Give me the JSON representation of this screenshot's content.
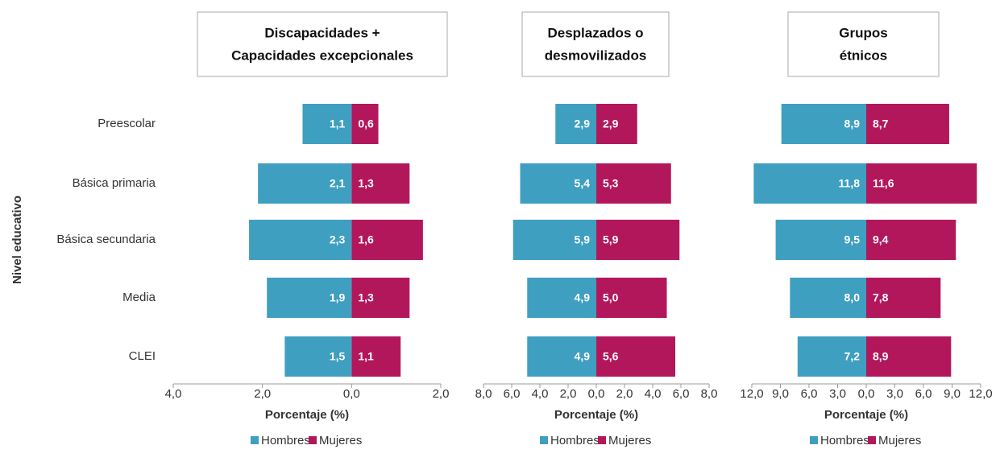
{
  "chart_data": [
    {
      "type": "bar",
      "orientation": "horizontal",
      "title": [
        "Discapacidades +",
        "Capacidades excepcionales"
      ],
      "ylabel": "Nivel educativo",
      "categories": [
        "Preescolar",
        "Básica primaria",
        "Básica secundaria",
        "Media",
        "CLEI"
      ],
      "xlabel": "Porcentaje (%)",
      "xlim": [
        -4,
        2
      ],
      "xticks": [
        {
          "value": -4,
          "label": "4,0"
        },
        {
          "value": -2,
          "label": "2,0"
        },
        {
          "value": 0,
          "label": "0,0"
        },
        {
          "value": 2,
          "label": "2,0"
        }
      ],
      "series": [
        {
          "name": "Hombres",
          "color": "#3f9fc1",
          "values": [
            -1.1,
            -2.1,
            -2.3,
            -1.9,
            -1.5
          ],
          "value_labels": [
            "1,1",
            "2,1",
            "2,3",
            "1,9",
            "1,5"
          ]
        },
        {
          "name": "Mujeres",
          "color": "#b3175b",
          "values": [
            0.6,
            1.3,
            1.6,
            1.3,
            1.1
          ],
          "value_labels": [
            "0,6",
            "1,3",
            "1,6",
            "1,3",
            "1,1"
          ]
        }
      ]
    },
    {
      "type": "bar",
      "orientation": "horizontal",
      "title": [
        "Desplazados o",
        "desmovilizados"
      ],
      "xlabel": "Porcentaje (%)",
      "xlim": [
        -8,
        8
      ],
      "xticks": [
        {
          "value": -8,
          "label": "8,0"
        },
        {
          "value": -6,
          "label": "6,0"
        },
        {
          "value": -4,
          "label": "4,0"
        },
        {
          "value": -2,
          "label": "2,0"
        },
        {
          "value": 0,
          "label": "0,0"
        },
        {
          "value": 2,
          "label": "2,0"
        },
        {
          "value": 4,
          "label": "4,0"
        },
        {
          "value": 6,
          "label": "6,0"
        },
        {
          "value": 8,
          "label": "8,0"
        }
      ],
      "series": [
        {
          "name": "Hombres",
          "color": "#3f9fc1",
          "values": [
            -2.9,
            -5.4,
            -5.9,
            -4.9,
            -4.9
          ],
          "value_labels": [
            "2,9",
            "5,4",
            "5,9",
            "4,9",
            "4,9"
          ]
        },
        {
          "name": "Mujeres",
          "color": "#b3175b",
          "values": [
            2.9,
            5.3,
            5.9,
            5.0,
            5.6
          ],
          "value_labels": [
            "2,9",
            "5,3",
            "5,9",
            "5,0",
            "5,6"
          ]
        }
      ]
    },
    {
      "type": "bar",
      "orientation": "horizontal",
      "title": [
        "Grupos",
        "étnicos"
      ],
      "xlabel": "Porcentaje (%)",
      "xlim": [
        -12,
        12
      ],
      "xticks": [
        {
          "value": -12,
          "label": "12,0"
        },
        {
          "value": -9,
          "label": "9,0"
        },
        {
          "value": -6,
          "label": "6,0"
        },
        {
          "value": -3,
          "label": "3,0"
        },
        {
          "value": 0,
          "label": "0,0"
        },
        {
          "value": 3,
          "label": "3,0"
        },
        {
          "value": 6,
          "label": "6,0"
        },
        {
          "value": 9,
          "label": "9,0"
        },
        {
          "value": 12,
          "label": "12,0"
        }
      ],
      "series": [
        {
          "name": "Hombres",
          "color": "#3f9fc1",
          "values": [
            -8.9,
            -11.8,
            -9.5,
            -8.0,
            -7.2
          ],
          "value_labels": [
            "8,9",
            "11,8",
            "9,5",
            "8,0",
            "7,2"
          ]
        },
        {
          "name": "Mujeres",
          "color": "#b3175b",
          "values": [
            8.7,
            11.6,
            9.4,
            7.8,
            8.9
          ],
          "value_labels": [
            "8,7",
            "11,6",
            "9,4",
            "7,8",
            "8,9"
          ]
        }
      ]
    }
  ]
}
